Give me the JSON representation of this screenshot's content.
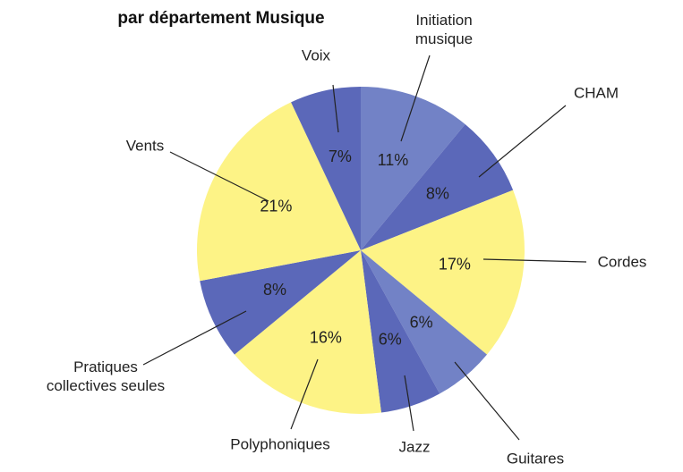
{
  "chart_data": {
    "type": "pie",
    "title": "par département Musique",
    "categories": [
      "Initiation musique",
      "CHAM",
      "Cordes",
      "Guitares",
      "Jazz",
      "Polyphoniques",
      "Pratiques collectives seules",
      "Vents",
      "Voix"
    ],
    "values": [
      11,
      8,
      17,
      6,
      6,
      16,
      8,
      21,
      7
    ],
    "value_labels": [
      "11%",
      "8%",
      "17%",
      "6%",
      "6%",
      "16%",
      "8%",
      "21%",
      "7%"
    ],
    "colors": [
      "#7282c6",
      "#5b68b9",
      "#fdf386",
      "#7282c6",
      "#5b68b9",
      "#fdf386",
      "#5b68b9",
      "#fdf386",
      "#5b68b9"
    ]
  }
}
